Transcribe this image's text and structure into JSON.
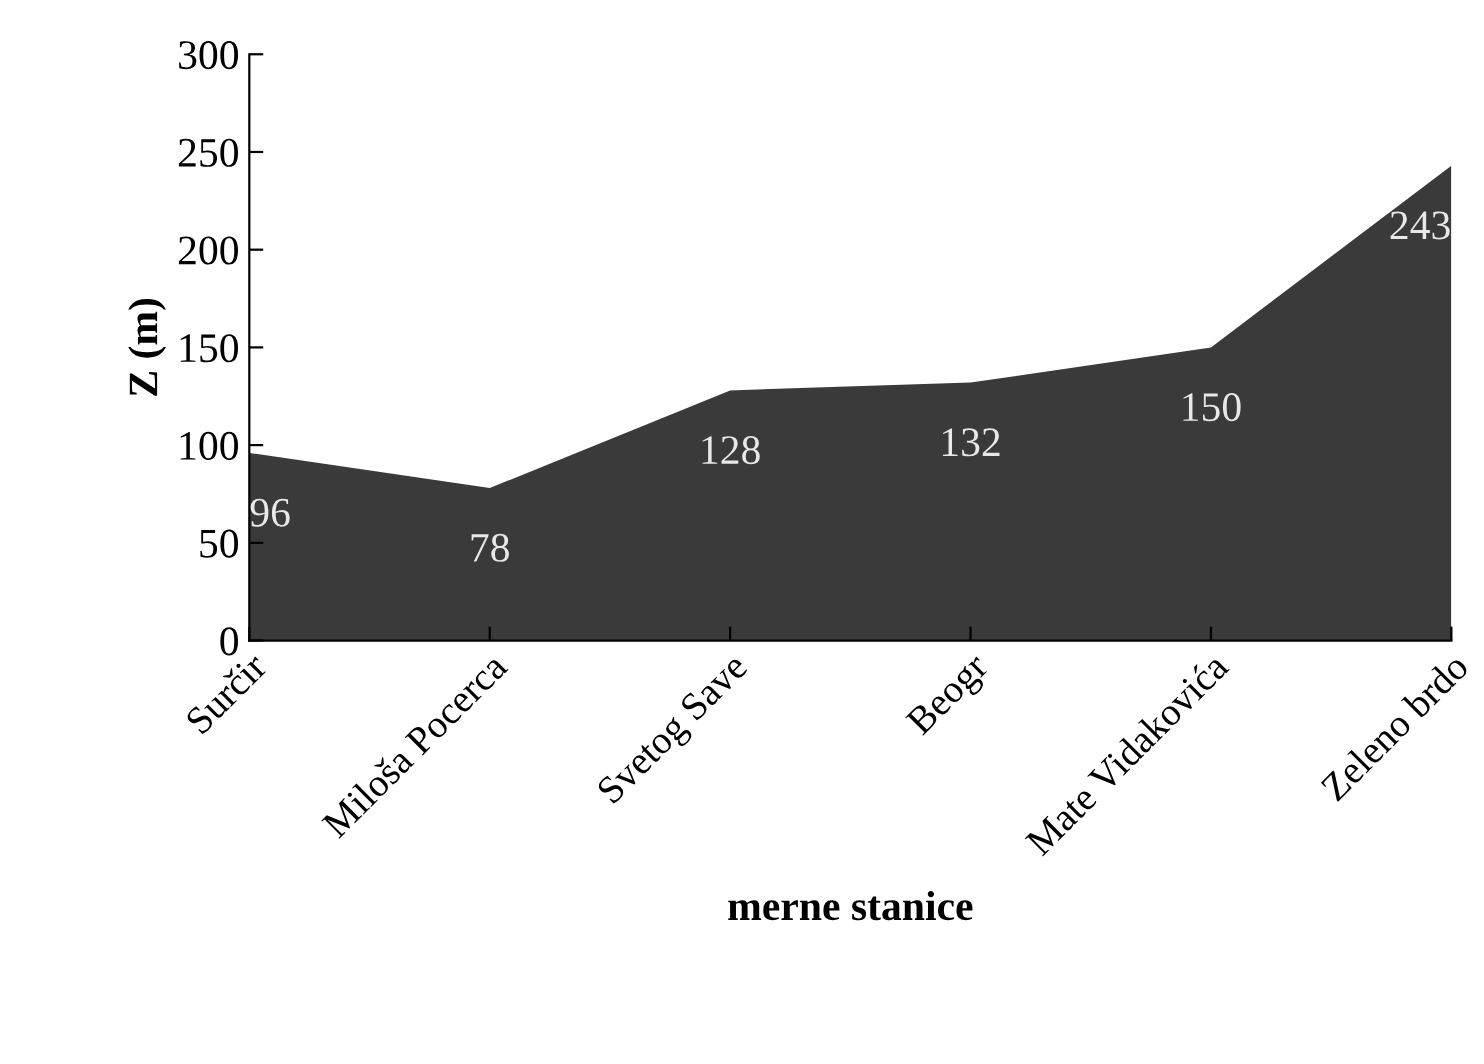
{
  "chart_data": {
    "type": "area",
    "xlabel": "merne stanice",
    "ylabel": "Z (m)",
    "categories": [
      "Surčir",
      "Miloša Pocerca",
      "Svetog Save",
      "Beogr",
      "Mate Vidakovića",
      "Zeleno brdo"
    ],
    "values": [
      96,
      78,
      128,
      132,
      150,
      243
    ],
    "color": "#3a3a3a",
    "ylim": [
      0,
      300
    ],
    "yticks": [
      0,
      50,
      100,
      150,
      200,
      250,
      300
    ],
    "grid": false,
    "data_labels": true
  }
}
